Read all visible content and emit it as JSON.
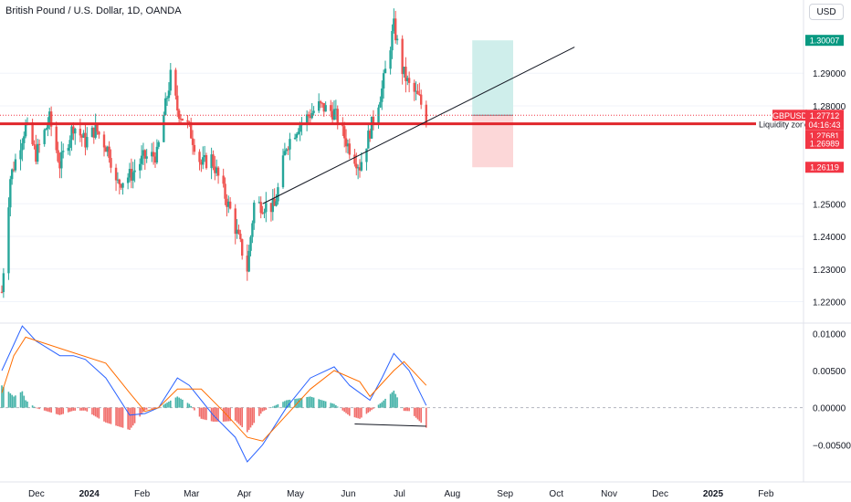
{
  "header": {
    "title": "British Pound / U.S. Dollar, 1D, OANDA",
    "currency_button": "USD"
  },
  "colors": {
    "bull": "#26a69a",
    "bear": "#ef5350",
    "level_line": "#e0262c",
    "target_zone": "#cfeeeb",
    "stop_zone": "#fcd7d8",
    "trendline": "#131722",
    "macd_line": "#2962ff",
    "signal_line": "#ff6d00",
    "axis_text": "#131722",
    "last_price_label": "#f23645",
    "target_label": "#089981",
    "stop_label": "#f23645"
  },
  "chart_data": [
    {
      "type": "candlestick",
      "symbol": "GBPUSD",
      "timeframe": "1D",
      "x_tick_labels": [
        "Dec",
        "2024",
        "Feb",
        "Mar",
        "Apr",
        "May",
        "Jun",
        "Jul",
        "Aug",
        "Sep",
        "Oct",
        "Nov",
        "Dec",
        "2025",
        "Feb"
      ],
      "y_tick_labels": [
        "1.29000",
        "1.28000",
        "1.25000",
        "1.24000",
        "1.23000",
        "1.22000"
      ],
      "ylim": [
        1.214,
        1.3046
      ],
      "price_path": [
        {
          "date": "2023-11-30",
          "close": 1.223
        },
        {
          "date": "2023-12-05",
          "close": 1.258
        },
        {
          "date": "2023-12-14",
          "close": 1.274
        },
        {
          "date": "2023-12-20",
          "close": 1.265
        },
        {
          "date": "2023-12-28",
          "close": 1.276
        },
        {
          "date": "2024-01-03",
          "close": 1.262
        },
        {
          "date": "2024-01-11",
          "close": 1.274
        },
        {
          "date": "2024-01-18",
          "close": 1.269
        },
        {
          "date": "2024-01-24",
          "close": 1.273
        },
        {
          "date": "2024-02-01",
          "close": 1.266
        },
        {
          "date": "2024-02-05",
          "close": 1.256
        },
        {
          "date": "2024-02-14",
          "close": 1.259
        },
        {
          "date": "2024-02-21",
          "close": 1.264
        },
        {
          "date": "2024-02-29",
          "close": 1.265
        },
        {
          "date": "2024-03-08",
          "close": 1.289
        },
        {
          "date": "2024-03-12",
          "close": 1.279
        },
        {
          "date": "2024-03-19",
          "close": 1.273
        },
        {
          "date": "2024-03-26",
          "close": 1.262
        },
        {
          "date": "2024-04-01",
          "close": 1.264
        },
        {
          "date": "2024-04-12",
          "close": 1.248
        },
        {
          "date": "2024-04-22",
          "close": 1.23
        },
        {
          "date": "2024-04-26",
          "close": 1.25
        },
        {
          "date": "2024-05-08",
          "close": 1.249
        },
        {
          "date": "2024-05-15",
          "close": 1.268
        },
        {
          "date": "2024-05-22",
          "close": 1.274
        },
        {
          "date": "2024-06-03",
          "close": 1.28
        },
        {
          "date": "2024-06-12",
          "close": 1.278
        },
        {
          "date": "2024-06-20",
          "close": 1.268
        },
        {
          "date": "2024-06-27",
          "close": 1.2615
        },
        {
          "date": "2024-07-05",
          "close": 1.276
        },
        {
          "date": "2024-07-10",
          "close": 1.285
        },
        {
          "date": "2024-07-17",
          "close": 1.3044
        },
        {
          "date": "2024-07-22",
          "close": 1.291
        },
        {
          "date": "2024-07-26",
          "close": 1.286
        },
        {
          "date": "2024-08-01",
          "close": 1.282
        },
        {
          "date": "2024-08-05",
          "close": 1.276
        }
      ],
      "horizontal_level": {
        "price": 1.2745,
        "label": "Liquidity zone"
      },
      "trendline": {
        "start": {
          "date": "2024-05-01",
          "price": 1.25
        },
        "end": {
          "date": "2024-10-31",
          "price": 1.298
        }
      },
      "position": {
        "start_date": "2024-09-01",
        "end_date": "2024-09-25",
        "entry": 1.27712,
        "target": 1.30007,
        "stop": 1.26119
      },
      "price_labels": [
        {
          "text": "1.30007",
          "role": "target",
          "price": 1.30007
        },
        {
          "text": "GBPUSD",
          "role": "symbol",
          "price": 1.27712
        },
        {
          "text": "1.27712",
          "role": "last",
          "price": 1.27712
        },
        {
          "text": "04:16:43",
          "role": "countdown",
          "price": 1.27712
        },
        {
          "text": "1.27681",
          "role": "level",
          "price": 1.27681
        },
        {
          "text": "1.26989",
          "role": "level",
          "price": 1.26989
        },
        {
          "text": "1.26119",
          "role": "stop",
          "price": 1.26119
        }
      ]
    },
    {
      "type": "macd",
      "y_tick_labels": [
        "0.01000",
        "0.00500",
        "0.00000",
        "−0.00500"
      ],
      "ylim": [
        -0.00755,
        0.01115
      ],
      "macd_line": [
        {
          "date": "2023-11-30",
          "value": 0.005
        },
        {
          "date": "2023-12-07",
          "value": 0.0085
        },
        {
          "date": "2023-12-12",
          "value": 0.011
        },
        {
          "date": "2023-12-20",
          "value": 0.009
        },
        {
          "date": "2024-01-03",
          "value": 0.007
        },
        {
          "date": "2024-01-11",
          "value": 0.007
        },
        {
          "date": "2024-01-18",
          "value": 0.0065
        },
        {
          "date": "2024-01-30",
          "value": 0.004
        },
        {
          "date": "2024-02-13",
          "value": -0.001
        },
        {
          "date": "2024-02-22",
          "value": -0.0008
        },
        {
          "date": "2024-03-01",
          "value": 0.0
        },
        {
          "date": "2024-03-12",
          "value": 0.004
        },
        {
          "date": "2024-03-19",
          "value": 0.003
        },
        {
          "date": "2024-03-26",
          "value": 0.001
        },
        {
          "date": "2024-04-02",
          "value": -0.001
        },
        {
          "date": "2024-04-15",
          "value": -0.004
        },
        {
          "date": "2024-04-22",
          "value": -0.0073
        },
        {
          "date": "2024-05-01",
          "value": -0.005
        },
        {
          "date": "2024-05-15",
          "value": 0.0
        },
        {
          "date": "2024-05-29",
          "value": 0.004
        },
        {
          "date": "2024-06-12",
          "value": 0.0055
        },
        {
          "date": "2024-06-21",
          "value": 0.003
        },
        {
          "date": "2024-07-03",
          "value": 0.001
        },
        {
          "date": "2024-07-10",
          "value": 0.004
        },
        {
          "date": "2024-07-17",
          "value": 0.0073
        },
        {
          "date": "2024-07-26",
          "value": 0.005
        },
        {
          "date": "2024-08-05",
          "value": 0.0003
        }
      ],
      "signal_line": [
        {
          "date": "2023-11-30",
          "value": 0.002
        },
        {
          "date": "2023-12-07",
          "value": 0.007
        },
        {
          "date": "2023-12-14",
          "value": 0.0095
        },
        {
          "date": "2024-01-03",
          "value": 0.008
        },
        {
          "date": "2024-01-30",
          "value": 0.006
        },
        {
          "date": "2024-02-13",
          "value": 0.002
        },
        {
          "date": "2024-02-22",
          "value": -0.0005
        },
        {
          "date": "2024-03-01",
          "value": 0.0
        },
        {
          "date": "2024-03-12",
          "value": 0.0025
        },
        {
          "date": "2024-03-26",
          "value": 0.0025
        },
        {
          "date": "2024-04-08",
          "value": -0.0005
        },
        {
          "date": "2024-04-22",
          "value": -0.004
        },
        {
          "date": "2024-05-01",
          "value": -0.0045
        },
        {
          "date": "2024-05-15",
          "value": -0.001
        },
        {
          "date": "2024-05-29",
          "value": 0.0025
        },
        {
          "date": "2024-06-12",
          "value": 0.005
        },
        {
          "date": "2024-06-27",
          "value": 0.0035
        },
        {
          "date": "2024-07-03",
          "value": 0.0015
        },
        {
          "date": "2024-07-17",
          "value": 0.005
        },
        {
          "date": "2024-07-23",
          "value": 0.0062
        },
        {
          "date": "2024-08-05",
          "value": 0.003
        }
      ],
      "divergence_line": {
        "start": {
          "date": "2024-06-24",
          "value": -0.0022
        },
        "end": {
          "date": "2024-08-05",
          "value": -0.0025
        }
      }
    }
  ]
}
